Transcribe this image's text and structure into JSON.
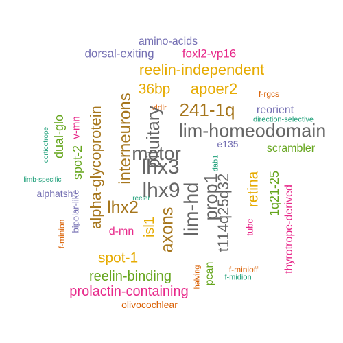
{
  "colors": {
    "orange": "#d95f02",
    "green": "#1b9e77",
    "purple": "#7570b3",
    "magenta": "#e7298a",
    "lime": "#66a61e",
    "gold": "#e6ab02",
    "brown": "#a6761d",
    "gray": "#666666"
  },
  "words": [
    {
      "text": "amino-acids",
      "color": "purple"
    },
    {
      "text": "dorsal-exiting",
      "color": "purple"
    },
    {
      "text": "foxl2-vp16",
      "color": "magenta"
    },
    {
      "text": "reelin-independent",
      "color": "gold"
    },
    {
      "text": "36bp",
      "color": "gold"
    },
    {
      "text": "apoer2",
      "color": "gold"
    },
    {
      "text": "f-rgcs",
      "color": "orange"
    },
    {
      "text": "vldlr",
      "color": "orange"
    },
    {
      "text": "241-1q",
      "color": "brown"
    },
    {
      "text": "reorient",
      "color": "purple"
    },
    {
      "text": "direction-selective",
      "color": "green"
    },
    {
      "text": "lim-homeodomain",
      "color": "gray"
    },
    {
      "text": "motor",
      "color": "gray"
    },
    {
      "text": "e135",
      "color": "purple"
    },
    {
      "text": "scrambler",
      "color": "lime"
    },
    {
      "text": "lhx3",
      "color": "gray"
    },
    {
      "text": "dab1",
      "color": "green"
    },
    {
      "text": "lhx9",
      "color": "gray"
    },
    {
      "text": "limb-specific",
      "color": "green"
    },
    {
      "text": "corticotrope",
      "color": "green"
    },
    {
      "text": "dual-glo",
      "color": "lime"
    },
    {
      "text": "v-mn",
      "color": "magenta"
    },
    {
      "text": "spot-2",
      "color": "lime"
    },
    {
      "text": "alpha-glycoprotein",
      "color": "brown"
    },
    {
      "text": "interneurons",
      "color": "brown"
    },
    {
      "text": "pituitary",
      "color": "gray"
    },
    {
      "text": "alphatsh",
      "color": "purple"
    },
    {
      "text": "reeler",
      "color": "green"
    },
    {
      "text": "bipolar-like",
      "color": "purple"
    },
    {
      "text": "f-minion",
      "color": "orange"
    },
    {
      "text": "lhx2",
      "color": "brown"
    },
    {
      "text": "d-mn",
      "color": "magenta"
    },
    {
      "text": "isl1",
      "color": "gold"
    },
    {
      "text": "axons",
      "color": "brown"
    },
    {
      "text": "lim-hd",
      "color": "gray"
    },
    {
      "text": "prop1",
      "color": "gray"
    },
    {
      "text": "t114q25q32",
      "color": "gray"
    },
    {
      "text": "retina",
      "color": "gold"
    },
    {
      "text": "1q21-25",
      "color": "lime"
    },
    {
      "text": "thyrotrope-derived",
      "color": "magenta"
    },
    {
      "text": "tube",
      "color": "magenta"
    },
    {
      "text": "spot-1",
      "color": "gold"
    },
    {
      "text": "reelin-binding",
      "color": "lime"
    },
    {
      "text": "pcan",
      "color": "lime"
    },
    {
      "text": "halving",
      "color": "orange"
    },
    {
      "text": "f-minioff",
      "color": "orange"
    },
    {
      "text": "f-midion",
      "color": "green"
    },
    {
      "text": "prolactin-containing",
      "color": "magenta"
    },
    {
      "text": "olivocochlear",
      "color": "orange"
    }
  ]
}
